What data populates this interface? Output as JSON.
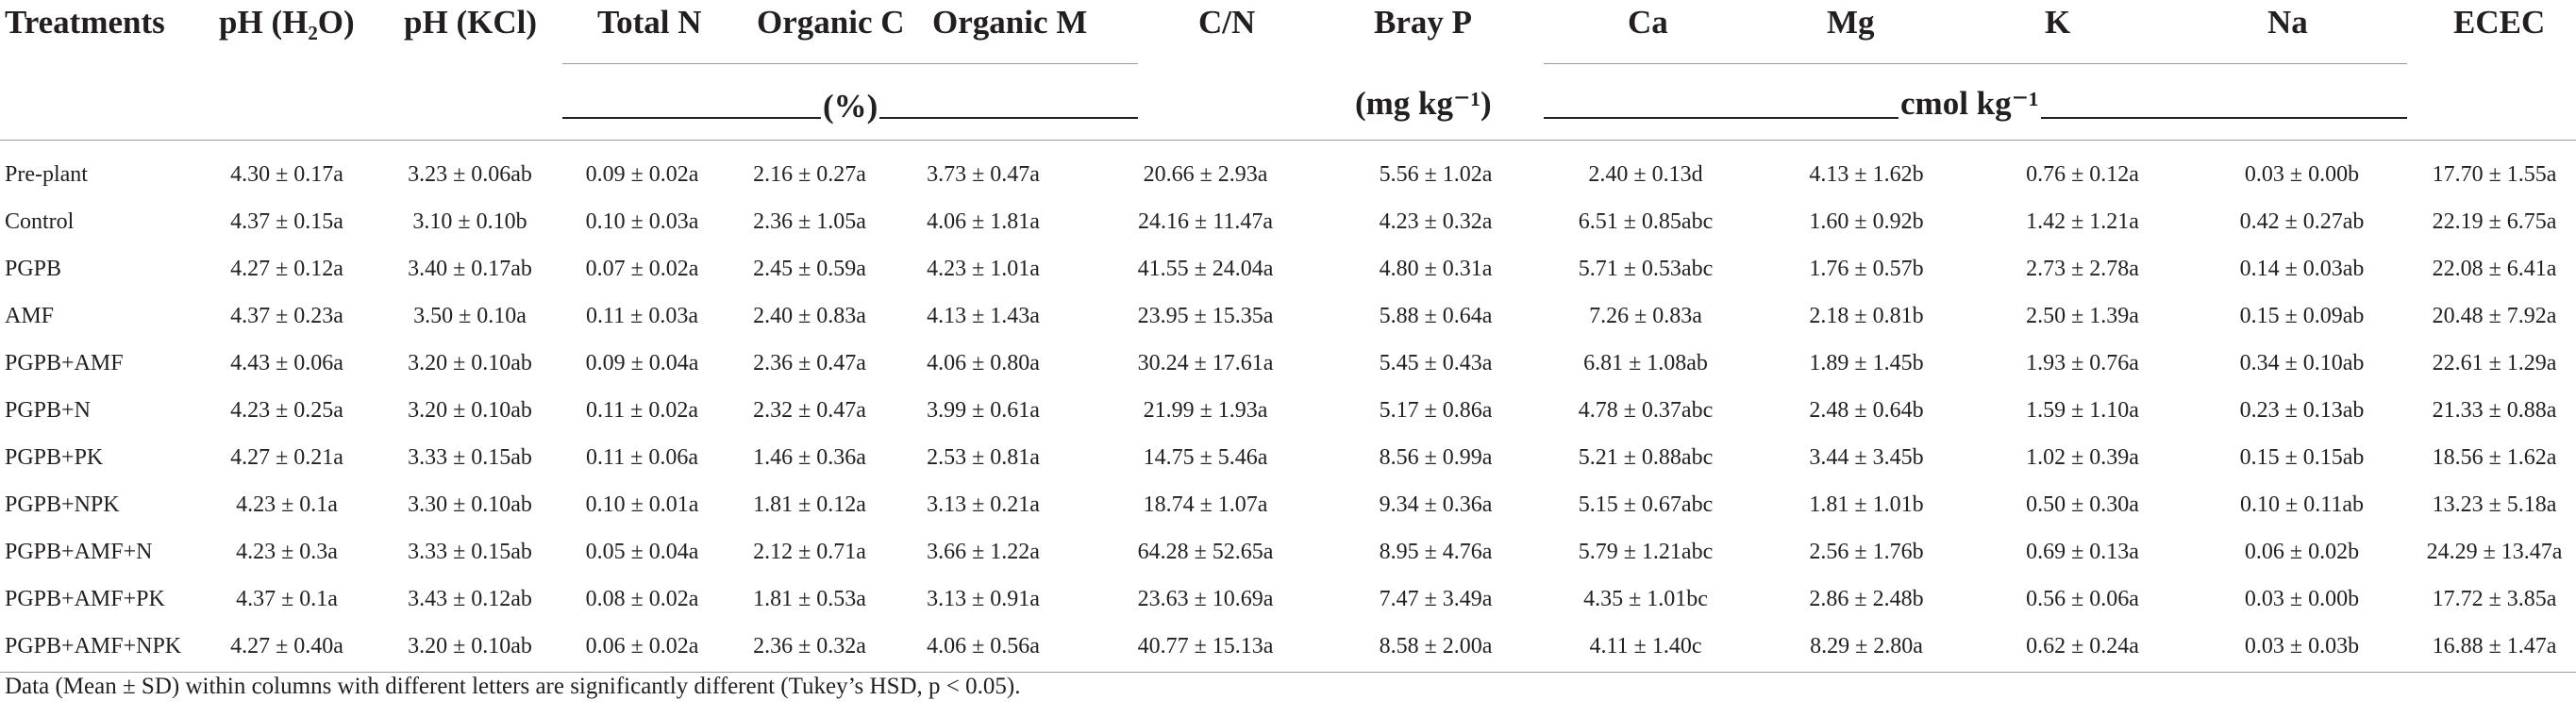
{
  "header": {
    "columns": [
      "Treatments",
      "pH (H₂O)",
      "pH (KCl)",
      "Total N",
      "Organic C",
      "Organic M",
      "C/N",
      "Bray P",
      "Ca",
      "Mg",
      "K",
      "Na",
      "ECEC"
    ],
    "unit_percent": "(%)",
    "unit_mg": "(mg kg⁻¹)",
    "unit_cmol": "cmol kg⁻¹"
  },
  "rows": [
    [
      "Pre-plant",
      "4.30 ± 0.17a",
      "3.23 ± 0.06ab",
      "0.09 ± 0.02a",
      "2.16 ± 0.27a",
      "3.73 ± 0.47a",
      "20.66 ± 2.93a",
      "5.56 ± 1.02a",
      "2.40 ± 0.13d",
      "4.13 ± 1.62b",
      "0.76 ± 0.12a",
      "0.03 ± 0.00b",
      "17.70 ± 1.55a"
    ],
    [
      "Control",
      "4.37 ± 0.15a",
      "3.10 ± 0.10b",
      "0.10 ± 0.03a",
      "2.36 ± 1.05a",
      "4.06 ± 1.81a",
      "24.16 ± 11.47a",
      "4.23 ± 0.32a",
      "6.51 ± 0.85abc",
      "1.60 ± 0.92b",
      "1.42 ± 1.21a",
      "0.42 ± 0.27ab",
      "22.19 ± 6.75a"
    ],
    [
      "PGPB",
      "4.27 ± 0.12a",
      "3.40 ± 0.17ab",
      "0.07 ± 0.02a",
      "2.45 ± 0.59a",
      "4.23 ± 1.01a",
      "41.55 ± 24.04a",
      "4.80 ± 0.31a",
      "5.71 ± 0.53abc",
      "1.76 ± 0.57b",
      "2.73 ± 2.78a",
      "0.14 ± 0.03ab",
      "22.08 ± 6.41a"
    ],
    [
      "AMF",
      "4.37 ± 0.23a",
      "3.50 ± 0.10a",
      "0.11 ± 0.03a",
      "2.40 ± 0.83a",
      "4.13 ± 1.43a",
      "23.95 ± 15.35a",
      "5.88 ± 0.64a",
      "7.26 ± 0.83a",
      "2.18 ± 0.81b",
      "2.50 ± 1.39a",
      "0.15 ± 0.09ab",
      "20.48 ± 7.92a"
    ],
    [
      "PGPB+AMF",
      "4.43 ± 0.06a",
      "3.20 ± 0.10ab",
      "0.09 ± 0.04a",
      "2.36 ± 0.47a",
      "4.06 ± 0.80a",
      "30.24 ± 17.61a",
      "5.45 ± 0.43a",
      "6.81 ± 1.08ab",
      "1.89 ± 1.45b",
      "1.93 ± 0.76a",
      "0.34 ± 0.10ab",
      "22.61 ± 1.29a"
    ],
    [
      "PGPB+N",
      "4.23 ± 0.25a",
      "3.20 ± 0.10ab",
      "0.11 ± 0.02a",
      "2.32 ± 0.47a",
      "3.99 ± 0.61a",
      "21.99 ± 1.93a",
      "5.17 ± 0.86a",
      "4.78 ± 0.37abc",
      "2.48 ± 0.64b",
      "1.59 ± 1.10a",
      "0.23 ± 0.13ab",
      "21.33 ± 0.88a"
    ],
    [
      "PGPB+PK",
      "4.27 ± 0.21a",
      "3.33 ± 0.15ab",
      "0.11 ± 0.06a",
      "1.46 ± 0.36a",
      "2.53 ± 0.81a",
      "14.75 ± 5.46a",
      "8.56 ± 0.99a",
      "5.21 ± 0.88abc",
      "3.44 ± 3.45b",
      "1.02 ± 0.39a",
      "0.15 ± 0.15ab",
      "18.56 ± 1.62a"
    ],
    [
      "PGPB+NPK",
      "4.23 ± 0.1a",
      "3.30 ± 0.10ab",
      "0.10 ± 0.01a",
      "1.81 ± 0.12a",
      "3.13 ± 0.21a",
      "18.74 ± 1.07a",
      "9.34 ± 0.36a",
      "5.15 ± 0.67abc",
      "1.81 ± 1.01b",
      "0.50 ± 0.30a",
      "0.10 ± 0.11ab",
      "13.23 ± 5.18a"
    ],
    [
      "PGPB+AMF+N",
      "4.23 ± 0.3a",
      "3.33 ± 0.15ab",
      "0.05 ± 0.04a",
      "2.12 ± 0.71a",
      "3.66 ± 1.22a",
      "64.28 ± 52.65a",
      "8.95 ± 4.76a",
      "5.79 ± 1.21abc",
      "2.56 ± 1.76b",
      "0.69 ± 0.13a",
      "0.06 ± 0.02b",
      "24.29 ± 13.47a"
    ],
    [
      "PGPB+AMF+PK",
      "4.37 ± 0.1a",
      "3.43 ± 0.12ab",
      "0.08 ± 0.02a",
      "1.81 ± 0.53a",
      "3.13 ± 0.91a",
      "23.63 ± 10.69a",
      "7.47 ± 3.49a",
      "4.35 ± 1.01bc",
      "2.86 ± 2.48b",
      "0.56 ± 0.06a",
      "0.03 ± 0.00b",
      "17.72 ± 3.85a"
    ],
    [
      "PGPB+AMF+NPK",
      "4.27 ± 0.40a",
      "3.20 ± 0.10ab",
      "0.06 ± 0.02a",
      "2.36 ± 0.32a",
      "4.06 ± 0.56a",
      "40.77 ± 15.13a",
      "8.58 ± 2.00a",
      "4.11 ± 1.40c",
      "8.29 ± 2.80a",
      "0.62 ± 0.24a",
      "0.03 ± 0.03b",
      "16.88 ± 1.47a"
    ]
  ],
  "footnote": "Data (Mean ± SD) within columns with different letters are significantly different (Tukey’s HSD, p < 0.05)."
}
